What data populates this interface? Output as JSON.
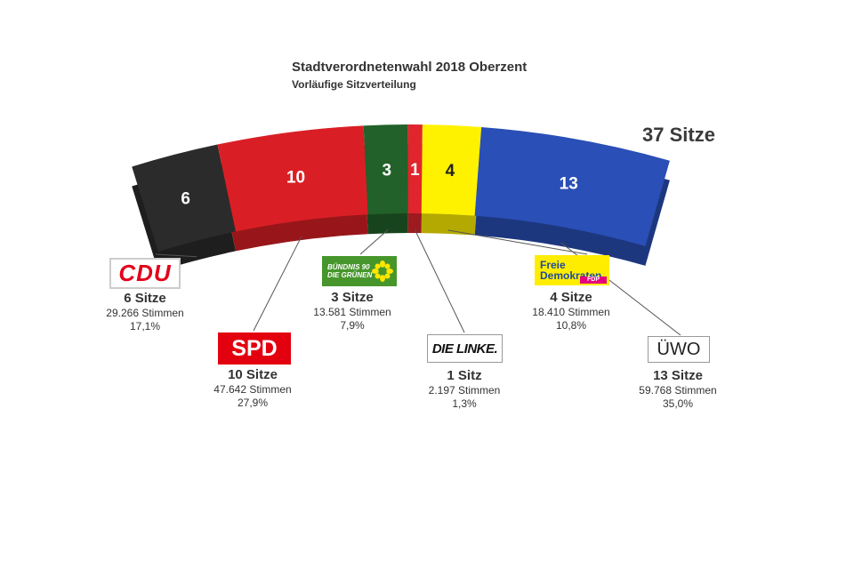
{
  "title": "Stadtverordnetenwahl 2018 Oberzent",
  "subtitle": "Vorläufige Sitzverteilung",
  "total_label": "37 Sitze",
  "chart_data": {
    "type": "parliament-arc",
    "total_seats": 37,
    "series": [
      {
        "party": "CDU",
        "logo_text": "CDU",
        "seats": 6,
        "seats_label": "6 Sitze",
        "votes_label": "29.266 Stimmen",
        "percent_label": "17,1%",
        "votes": 29266,
        "percent": 17.1,
        "color": "#2b2b2b"
      },
      {
        "party": "SPD",
        "logo_text": "SPD",
        "seats": 10,
        "seats_label": "10 Sitze",
        "votes_label": "47.642 Stimmen",
        "percent_label": "27,9%",
        "votes": 47642,
        "percent": 27.9,
        "color": "#d91f25"
      },
      {
        "party": "BÜNDNIS 90 DIE GRÜNEN",
        "logo_text": [
          "BÜNDNIS 90",
          "DIE GRÜNEN"
        ],
        "seats": 3,
        "seats_label": "3 Sitze",
        "votes_label": "13.581 Stimmen",
        "percent_label": "7,9%",
        "votes": 13581,
        "percent": 7.9,
        "color": "#22612a"
      },
      {
        "party": "DIE LINKE.",
        "logo_text": "DIE LINKE.",
        "seats": 1,
        "seats_label": "1 Sitz",
        "votes_label": "2.197 Stimmen",
        "percent_label": "1,3%",
        "votes": 2197,
        "percent": 1.3,
        "color": "#e0252c"
      },
      {
        "party": "FDP",
        "logo_text": [
          "Freie",
          "Demokraten",
          "FDP"
        ],
        "seats": 4,
        "seats_label": "4 Sitze",
        "votes_label": "18.410 Stimmen",
        "percent_label": "10,8%",
        "votes": 18410,
        "percent": 10.8,
        "color": "#fff200"
      },
      {
        "party": "ÜWO",
        "logo_text": "ÜWO",
        "seats": 13,
        "seats_label": "13 Sitze",
        "votes_label": "59.768 Stimmen",
        "percent_label": "35,0%",
        "votes": 59768,
        "percent": 35.0,
        "color": "#2a4fb6"
      }
    ]
  }
}
